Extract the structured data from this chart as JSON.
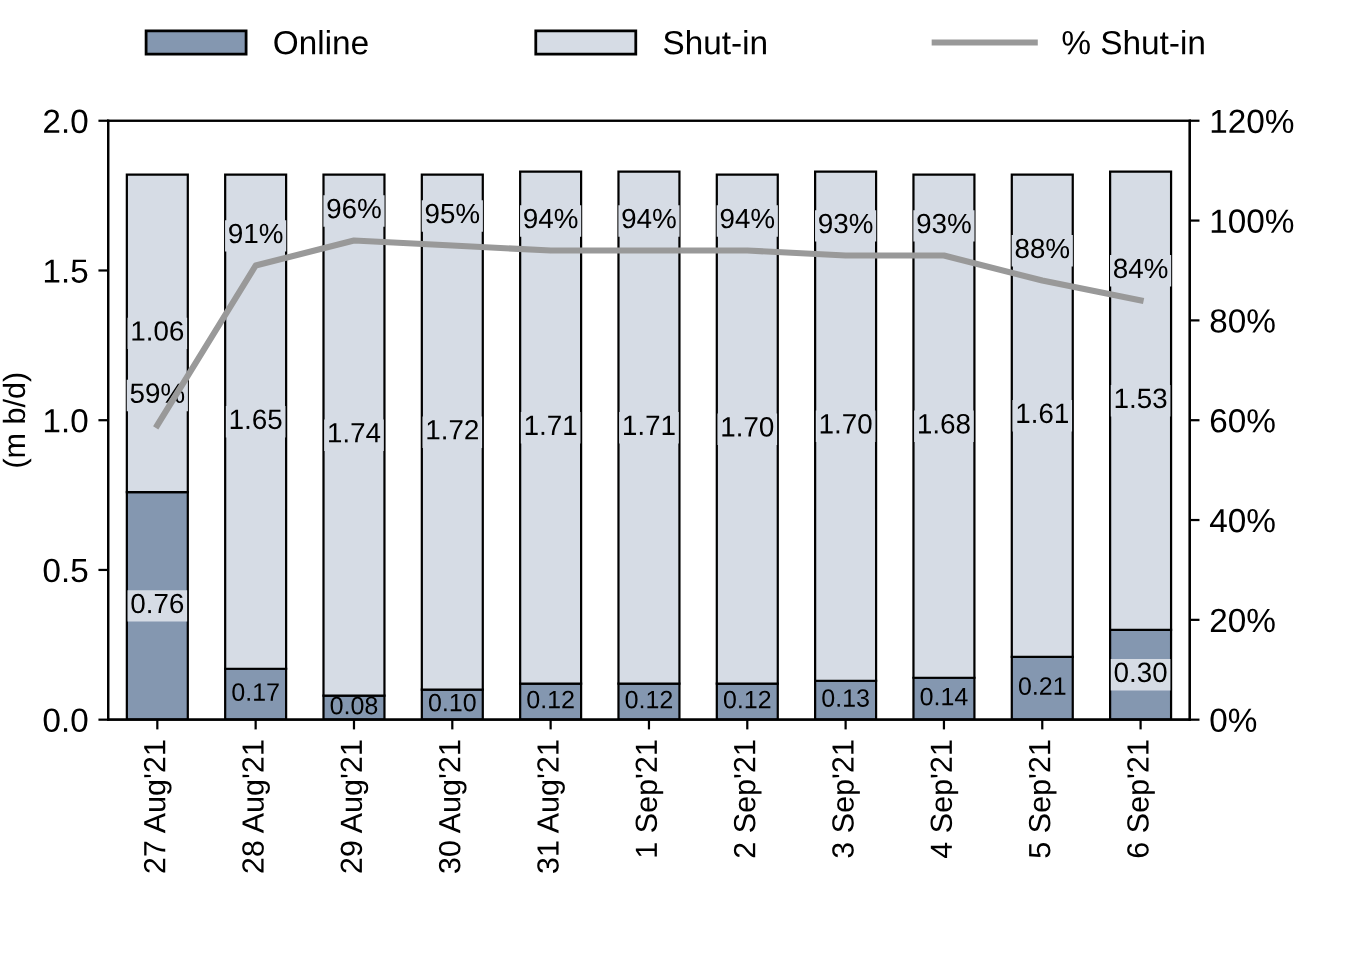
{
  "chart_data": {
    "type": "bar",
    "stacked": true,
    "ylabel": "(m b/d)",
    "categories": [
      "27 Aug'21",
      "28 Aug'21",
      "29 Aug'21",
      "30 Aug'21",
      "31 Aug'21",
      "1 Sep'21",
      "2 Sep'21",
      "3 Sep'21",
      "4 Sep'21",
      "5 Sep'21",
      "6 Sep'21"
    ],
    "series": [
      {
        "name": "Online",
        "color": "#8497b0",
        "values": [
          0.76,
          0.17,
          0.08,
          0.1,
          0.12,
          0.12,
          0.12,
          0.13,
          0.14,
          0.21,
          0.3
        ],
        "value_labels": [
          "0.76",
          "0.17",
          "0.08",
          "0.10",
          "0.12",
          "0.12",
          "0.12",
          "0.13",
          "0.14",
          "0.21",
          "0.30"
        ]
      },
      {
        "name": "Shut-in",
        "color": "#d6dce5",
        "values": [
          1.06,
          1.65,
          1.74,
          1.72,
          1.71,
          1.71,
          1.7,
          1.7,
          1.68,
          1.61,
          1.53
        ],
        "value_labels": [
          "1.06",
          "1.65",
          "1.74",
          "1.72",
          "1.71",
          "1.71",
          "1.70",
          "1.70",
          "1.68",
          "1.61",
          "1.53"
        ]
      },
      {
        "name": "% Shut-in",
        "type": "line",
        "axis": "y2",
        "color": "#999999",
        "values": [
          59,
          91,
          96,
          95,
          94,
          94,
          94,
          93,
          93,
          88,
          84
        ],
        "value_labels": [
          "59%",
          "91%",
          "96%",
          "95%",
          "94%",
          "94%",
          "94%",
          "93%",
          "93%",
          "88%",
          "84%"
        ]
      }
    ],
    "ylim": [
      0,
      2.0
    ],
    "yticks": [
      {
        "value": 0,
        "label": "0.0"
      },
      {
        "value": 0.5,
        "label": "0.5"
      },
      {
        "value": 1.0,
        "label": "1.0"
      },
      {
        "value": 1.5,
        "label": "1.5"
      },
      {
        "value": 2.0,
        "label": "2.0"
      }
    ],
    "y2lim": [
      0,
      120
    ],
    "y2ticks": [
      {
        "value": 0,
        "label": "0%"
      },
      {
        "value": 20,
        "label": "20%"
      },
      {
        "value": 40,
        "label": "40%"
      },
      {
        "value": 60,
        "label": "60%"
      },
      {
        "value": 80,
        "label": "80%"
      },
      {
        "value": 100,
        "label": "100%"
      },
      {
        "value": 120,
        "label": "120%"
      }
    ],
    "legend": "top",
    "grid": false,
    "marker": "none",
    "line_style": "solid"
  }
}
